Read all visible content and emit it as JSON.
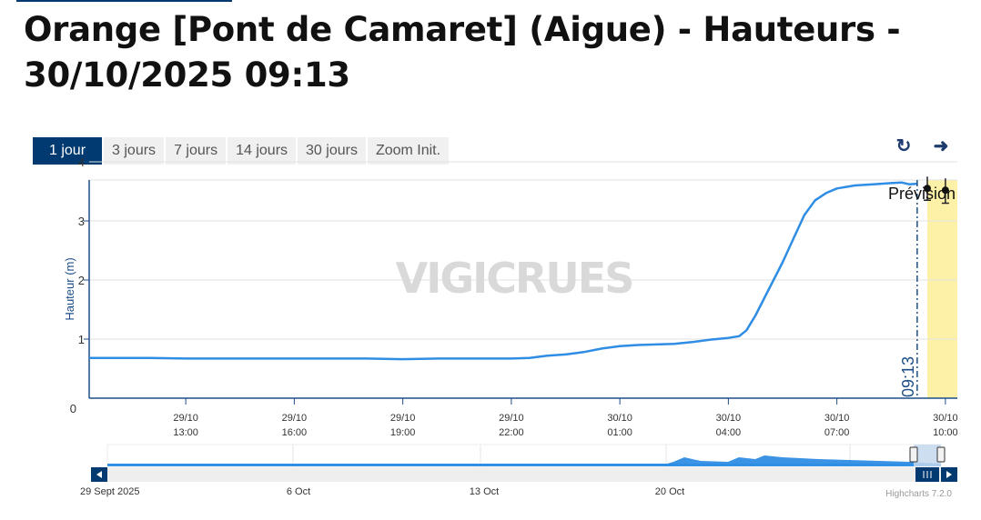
{
  "page": {
    "title": "Orange [Pont de Camaret] (Aigue) - Hauteurs - 30/10/2025 09:13"
  },
  "range_buttons": [
    {
      "label": "1 jour",
      "active": true
    },
    {
      "label": "3 jours",
      "active": false
    },
    {
      "label": "7 jours",
      "active": false
    },
    {
      "label": "14 jours",
      "active": false
    },
    {
      "label": "30 jours",
      "active": false
    },
    {
      "label": "Zoom Init.",
      "active": false
    }
  ],
  "icons": {
    "refresh": "refresh-icon",
    "share": "share-arrow-icon"
  },
  "watermark": "VIGICRUES",
  "credits": "Highcharts 7.2.0",
  "colors": {
    "line": "#2f8de4",
    "forecast_band": "#fdf1a8",
    "axis": "#1d4e89",
    "nav_button": "#003a70"
  },
  "chart_data": {
    "type": "line",
    "ylabel": "Hauteur (m)",
    "ylim": [
      0,
      4
    ],
    "yticks": [
      "0",
      "1",
      "2",
      "3",
      "4"
    ],
    "xlim_hours": [
      10.33,
      34.33
    ],
    "xticks": [
      {
        "h": 13,
        "date": "29/10",
        "time": "13:00"
      },
      {
        "h": 16,
        "date": "29/10",
        "time": "16:00"
      },
      {
        "h": 19,
        "date": "29/10",
        "time": "19:00"
      },
      {
        "h": 22,
        "date": "29/10",
        "time": "22:00"
      },
      {
        "h": 25,
        "date": "30/10",
        "time": "01:00"
      },
      {
        "h": 28,
        "date": "30/10",
        "time": "04:00"
      },
      {
        "h": 31,
        "date": "30/10",
        "time": "07:00"
      },
      {
        "h": 34,
        "date": "30/10",
        "time": "10:00"
      }
    ],
    "current_time_label": "09:13",
    "current_time_h": 33.22,
    "forecast_label": "Prévision",
    "forecast_band_h": [
      33.5,
      34.33
    ],
    "series": [
      {
        "points": [
          [
            10.33,
            0.68
          ],
          [
            11,
            0.68
          ],
          [
            12,
            0.68
          ],
          [
            13,
            0.67
          ],
          [
            14,
            0.67
          ],
          [
            15,
            0.67
          ],
          [
            16,
            0.67
          ],
          [
            17,
            0.67
          ],
          [
            18,
            0.67
          ],
          [
            19,
            0.66
          ],
          [
            20,
            0.67
          ],
          [
            21,
            0.67
          ],
          [
            22,
            0.67
          ],
          [
            22.5,
            0.68
          ],
          [
            23,
            0.72
          ],
          [
            23.5,
            0.74
          ],
          [
            24,
            0.78
          ],
          [
            24.5,
            0.84
          ],
          [
            25,
            0.88
          ],
          [
            25.5,
            0.9
          ],
          [
            26,
            0.91
          ],
          [
            26.5,
            0.92
          ],
          [
            27,
            0.95
          ],
          [
            27.5,
            0.99
          ],
          [
            28,
            1.02
          ],
          [
            28.3,
            1.05
          ],
          [
            28.5,
            1.15
          ],
          [
            28.75,
            1.4
          ],
          [
            29,
            1.7
          ],
          [
            29.5,
            2.3
          ],
          [
            29.8,
            2.7
          ],
          [
            30.1,
            3.1
          ],
          [
            30.4,
            3.35
          ],
          [
            30.7,
            3.47
          ],
          [
            31,
            3.55
          ],
          [
            31.5,
            3.6
          ],
          [
            32,
            3.62
          ],
          [
            32.5,
            3.64
          ],
          [
            32.8,
            3.65
          ],
          [
            33,
            3.62
          ],
          [
            33.22,
            3.63
          ]
        ]
      }
    ],
    "forecast_points": [
      {
        "h": 33.5,
        "value": 3.55,
        "low": 3.35,
        "high": 3.75
      },
      {
        "h": 34.0,
        "value": 3.52,
        "low": 3.3,
        "high": 3.72
      }
    ],
    "navigator": {
      "labels": [
        "29 Sept 2025",
        "6 Oct",
        "13 Oct",
        "20 Oct"
      ]
    }
  }
}
